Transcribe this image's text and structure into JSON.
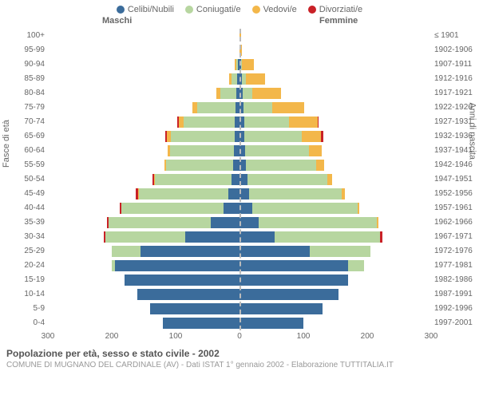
{
  "legend": [
    {
      "label": "Celibi/Nubili",
      "color": "#3b6c9b"
    },
    {
      "label": "Coniugati/e",
      "color": "#b7d6a0"
    },
    {
      "label": "Vedovi/e",
      "color": "#f3b74a"
    },
    {
      "label": "Divorziati/e",
      "color": "#c92127"
    }
  ],
  "headers": {
    "male": "Maschi",
    "female": "Femmine"
  },
  "axis_left_title": "Fasce di età",
  "axis_right_title": "Anni di nascita",
  "age_labels": [
    "100+",
    "95-99",
    "90-94",
    "85-89",
    "80-84",
    "75-79",
    "70-74",
    "65-69",
    "60-64",
    "55-59",
    "50-54",
    "45-49",
    "40-44",
    "35-39",
    "30-34",
    "25-29",
    "20-24",
    "15-19",
    "10-14",
    "5-9",
    "0-4"
  ],
  "year_labels": [
    "≤ 1901",
    "1902-1906",
    "1907-1911",
    "1912-1916",
    "1917-1921",
    "1922-1926",
    "1927-1931",
    "1932-1936",
    "1937-1941",
    "1942-1946",
    "1947-1951",
    "1952-1956",
    "1957-1961",
    "1962-1966",
    "1967-1971",
    "1972-1976",
    "1977-1981",
    "1982-1986",
    "1987-1991",
    "1992-1996",
    "1997-2001"
  ],
  "xticks": [
    300,
    200,
    100,
    0,
    100,
    200,
    300
  ],
  "xmax": 300,
  "rows": [
    {
      "m": {
        "single": 0,
        "married": 0,
        "widowed": 0,
        "divorced": 0
      },
      "f": {
        "single": 0,
        "married": 0,
        "widowed": 2,
        "divorced": 0
      }
    },
    {
      "m": {
        "single": 0,
        "married": 0,
        "widowed": 0,
        "divorced": 0
      },
      "f": {
        "single": 0,
        "married": 0,
        "widowed": 4,
        "divorced": 0
      }
    },
    {
      "m": {
        "single": 2,
        "married": 3,
        "widowed": 2,
        "divorced": 0
      },
      "f": {
        "single": 2,
        "married": 2,
        "widowed": 18,
        "divorced": 0
      }
    },
    {
      "m": {
        "single": 4,
        "married": 8,
        "widowed": 4,
        "divorced": 0
      },
      "f": {
        "single": 4,
        "married": 6,
        "widowed": 30,
        "divorced": 0
      }
    },
    {
      "m": {
        "single": 5,
        "married": 25,
        "widowed": 6,
        "divorced": 0
      },
      "f": {
        "single": 5,
        "married": 15,
        "widowed": 45,
        "divorced": 0
      }
    },
    {
      "m": {
        "single": 6,
        "married": 60,
        "widowed": 8,
        "divorced": 0
      },
      "f": {
        "single": 6,
        "married": 45,
        "widowed": 50,
        "divorced": 0
      }
    },
    {
      "m": {
        "single": 7,
        "married": 80,
        "widowed": 8,
        "divorced": 2
      },
      "f": {
        "single": 7,
        "married": 70,
        "widowed": 45,
        "divorced": 2
      }
    },
    {
      "m": {
        "single": 8,
        "married": 100,
        "widowed": 6,
        "divorced": 2
      },
      "f": {
        "single": 8,
        "married": 90,
        "widowed": 30,
        "divorced": 3
      }
    },
    {
      "m": {
        "single": 9,
        "married": 100,
        "widowed": 4,
        "divorced": 0
      },
      "f": {
        "single": 9,
        "married": 100,
        "widowed": 20,
        "divorced": 0
      }
    },
    {
      "m": {
        "single": 10,
        "married": 105,
        "widowed": 3,
        "divorced": 0
      },
      "f": {
        "single": 10,
        "married": 110,
        "widowed": 12,
        "divorced": 0
      }
    },
    {
      "m": {
        "single": 12,
        "married": 120,
        "widowed": 2,
        "divorced": 2
      },
      "f": {
        "single": 12,
        "married": 125,
        "widowed": 8,
        "divorced": 0
      }
    },
    {
      "m": {
        "single": 18,
        "married": 140,
        "widowed": 1,
        "divorced": 3
      },
      "f": {
        "single": 15,
        "married": 145,
        "widowed": 5,
        "divorced": 0
      }
    },
    {
      "m": {
        "single": 25,
        "married": 160,
        "widowed": 0,
        "divorced": 3
      },
      "f": {
        "single": 20,
        "married": 165,
        "widowed": 3,
        "divorced": 0
      }
    },
    {
      "m": {
        "single": 45,
        "married": 160,
        "widowed": 0,
        "divorced": 3
      },
      "f": {
        "single": 30,
        "married": 185,
        "widowed": 2,
        "divorced": 0
      }
    },
    {
      "m": {
        "single": 85,
        "married": 125,
        "widowed": 0,
        "divorced": 3
      },
      "f": {
        "single": 55,
        "married": 165,
        "widowed": 0,
        "divorced": 4
      }
    },
    {
      "m": {
        "single": 155,
        "married": 45,
        "widowed": 0,
        "divorced": 0
      },
      "f": {
        "single": 110,
        "married": 95,
        "widowed": 0,
        "divorced": 0
      }
    },
    {
      "m": {
        "single": 195,
        "married": 5,
        "widowed": 0,
        "divorced": 0
      },
      "f": {
        "single": 170,
        "married": 25,
        "widowed": 0,
        "divorced": 0
      }
    },
    {
      "m": {
        "single": 180,
        "married": 0,
        "widowed": 0,
        "divorced": 0
      },
      "f": {
        "single": 170,
        "married": 0,
        "widowed": 0,
        "divorced": 0
      }
    },
    {
      "m": {
        "single": 160,
        "married": 0,
        "widowed": 0,
        "divorced": 0
      },
      "f": {
        "single": 155,
        "married": 0,
        "widowed": 0,
        "divorced": 0
      }
    },
    {
      "m": {
        "single": 140,
        "married": 0,
        "widowed": 0,
        "divorced": 0
      },
      "f": {
        "single": 130,
        "married": 0,
        "widowed": 0,
        "divorced": 0
      }
    },
    {
      "m": {
        "single": 120,
        "married": 0,
        "widowed": 0,
        "divorced": 0
      },
      "f": {
        "single": 100,
        "married": 0,
        "widowed": 0,
        "divorced": 0
      }
    }
  ],
  "footer": {
    "title": "Popolazione per età, sesso e stato civile - 2002",
    "sub": "COMUNE DI MUGNANO DEL CARDINALE (AV) - Dati ISTAT 1° gennaio 2002 - Elaborazione TUTTITALIA.IT"
  }
}
